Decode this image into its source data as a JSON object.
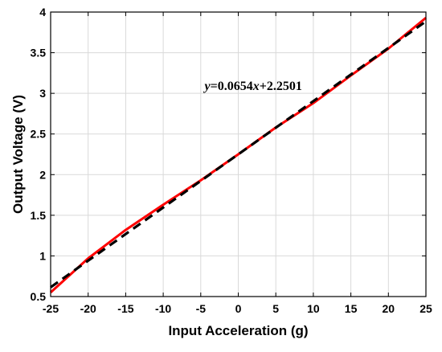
{
  "chart_data": {
    "type": "line",
    "title": "",
    "xlabel": "Input Acceleration (g)",
    "ylabel": "Output Voltage (V)",
    "xlim": [
      -25,
      25
    ],
    "ylim": [
      0.5,
      4
    ],
    "xticks": [
      -25,
      -20,
      -15,
      -10,
      -5,
      0,
      5,
      10,
      15,
      20,
      25
    ],
    "yticks": [
      0.5,
      1,
      1.5,
      2,
      2.5,
      3,
      3.5,
      4
    ],
    "xtick_labels": [
      "-25",
      "-20",
      "-15",
      "-10",
      "-5",
      "0",
      "5",
      "10",
      "15",
      "20",
      "25"
    ],
    "ytick_labels": [
      "0.5",
      "1",
      "1.5",
      "2",
      "2.5",
      "3",
      "3.5",
      "4"
    ],
    "grid": true,
    "series": [
      {
        "style": "solid",
        "color": "#ff0000",
        "x": [
          -25,
          -20,
          -15,
          -10,
          -5,
          0,
          5,
          10,
          15,
          20,
          25
        ],
        "y": [
          0.55,
          0.97,
          1.32,
          1.63,
          1.93,
          2.25,
          2.58,
          2.88,
          3.22,
          3.55,
          3.93
        ]
      },
      {
        "style": "dashed",
        "color": "#000000",
        "x": [
          -25,
          25
        ],
        "y": [
          0.615,
          3.885
        ]
      }
    ],
    "annotations": [
      {
        "parts": [
          {
            "text": "y",
            "italic": true
          },
          {
            "text": "=0.0654",
            "italic": false
          },
          {
            "text": "x",
            "italic": true
          },
          {
            "text": "+2.2501",
            "italic": false
          }
        ],
        "x": -4.5,
        "y": 3.1
      }
    ]
  }
}
